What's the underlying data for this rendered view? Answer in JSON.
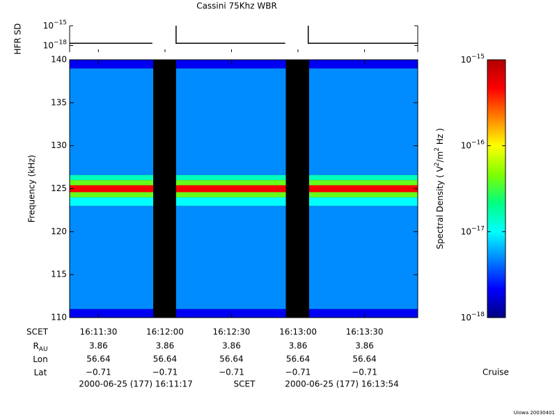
{
  "chart_data": {
    "type": "spectrogram",
    "title": "Cassini 75Khz WBR",
    "xlim": [
      17,
      174
    ],
    "xticks": [
      {
        "value": 30,
        "label": "16:11:30"
      },
      {
        "value": 60,
        "label": "16:12:00"
      },
      {
        "value": 90,
        "label": "16:12:30"
      },
      {
        "value": 120,
        "label": "16:13:00"
      },
      {
        "value": 150,
        "label": "16:13:30"
      }
    ],
    "ylabel": "Frequency (kHz)",
    "ylim": [
      110,
      140
    ],
    "yticks": [
      110,
      115,
      120,
      125,
      130,
      135,
      140
    ],
    "time_segments": [
      [
        17,
        54.7
      ],
      [
        65,
        114.5
      ],
      [
        125,
        174
      ]
    ],
    "freq_bins": [
      110,
      111,
      123,
      124,
      124.6,
      125.4,
      126,
      126.6,
      139,
      140
    ],
    "density": [
      2e-18,
      5e-18,
      1e-17,
      4e-17,
      5e-16,
      4e-17,
      1.5e-17,
      5e-18,
      2e-18
    ],
    "background_color": "#000000",
    "colorbar": {
      "label_parts": [
        {
          "text": "Spectral Density ( V"
        },
        {
          "text": "2",
          "sup": true
        },
        {
          "text": "/m"
        },
        {
          "text": "2",
          "sup": true
        },
        {
          "text": "  Hz )"
        }
      ],
      "log": true,
      "lim": [
        1e-18,
        1e-15
      ],
      "ticks": [
        {
          "value": 1e-18,
          "label": "10",
          "exponent": "−18"
        },
        {
          "value": 1e-17,
          "label": "10",
          "exponent": "−17"
        },
        {
          "value": 1e-16,
          "label": "10",
          "exponent": "−16"
        },
        {
          "value": 1e-15,
          "label": "10",
          "exponent": "−15"
        }
      ],
      "colors": [
        "#00007f",
        "#0000ff",
        "#0080ff",
        "#00ffff",
        "#00ff80",
        "#80ff00",
        "#ffff00",
        "#ff8000",
        "#ff0000",
        "#b00000"
      ]
    },
    "panel": {
      "ylabel": "HFR SD",
      "log": true,
      "ylim": [
        1e-19,
        1e-15
      ],
      "yticks": [
        {
          "value": 1e-15,
          "label": "10",
          "exponent": "−15"
        },
        {
          "value": 1e-18,
          "label": "10",
          "exponent": "−18"
        }
      ],
      "x": [
        17,
        54.3,
        60,
        65,
        65,
        114.2,
        120,
        124.6,
        124.6,
        174
      ],
      "values": [
        2.2e-18,
        2.2e-18,
        null,
        1e-15,
        2.2e-18,
        2.2e-18,
        null,
        1e-15,
        2.2e-18,
        2.2e-18
      ],
      "color": "#000000"
    },
    "ephemeris": {
      "scet_label": "SCET",
      "rows": [
        {
          "label": "R",
          "sub": "AU",
          "values": [
            "3.86",
            "3.86",
            "3.86",
            "3.86",
            "3.86"
          ]
        },
        {
          "label": "Lon",
          "values": [
            "56.64",
            "56.64",
            "56.64",
            "56.64",
            "56.64"
          ]
        },
        {
          "label": "Lat",
          "values": [
            "−0.71",
            "−0.71",
            "−0.71",
            "−0.71",
            "−0.71"
          ]
        }
      ]
    },
    "footer": {
      "start": "2000-06-25 (177) 16:11:17",
      "mid": "SCET",
      "end": "2000-06-25 (177) 16:13:54"
    },
    "mission_phase": "Cruise",
    "credit": "Uiowa 20030401"
  }
}
